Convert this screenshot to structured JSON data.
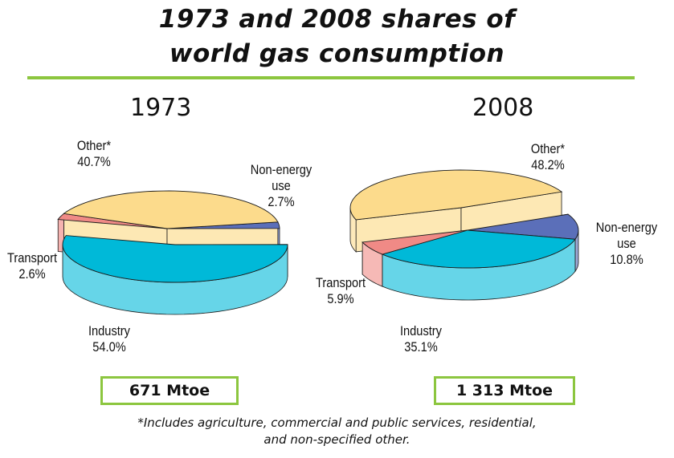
{
  "title_line1": "1973 and 2008 shares of",
  "title_line2": "world gas consumption",
  "footnote_line1": "*Includes agriculture, commercial and public services, residential,",
  "footnote_line2": "and non-specified other.",
  "colors": {
    "Industry": "#00b9d8",
    "Non-energy use": "#5b6fb9",
    "Other*": "#fcdb8c",
    "Transport": "#f08a86",
    "title_rule": "#8cc63f"
  },
  "chart_data": [
    {
      "type": "pie",
      "title": "1973",
      "total_label": "671 Mtoe",
      "slices": [
        {
          "name": "Industry",
          "value": 54.0,
          "label_name": [
            "Industry"
          ],
          "label_value": "54.0%"
        },
        {
          "name": "Non-energy use",
          "value": 2.7,
          "label_name": [
            "Non-energy",
            "use"
          ],
          "label_value": "2.7%"
        },
        {
          "name": "Other*",
          "value": 40.7,
          "label_name": [
            "Other*"
          ],
          "label_value": "40.7%"
        },
        {
          "name": "Transport",
          "value": 2.6,
          "label_name": [
            "Transport"
          ],
          "label_value": "2.6%"
        }
      ]
    },
    {
      "type": "pie",
      "title": "2008",
      "total_label": "1 313 Mtoe",
      "slices": [
        {
          "name": "Industry",
          "value": 35.1,
          "label_name": [
            "Industry"
          ],
          "label_value": "35.1%"
        },
        {
          "name": "Non-energy use",
          "value": 10.8,
          "label_name": [
            "Non-energy",
            "use"
          ],
          "label_value": "10.8%"
        },
        {
          "name": "Other*",
          "value": 48.2,
          "label_name": [
            "Other*"
          ],
          "label_value": "48.2%"
        },
        {
          "name": "Transport",
          "value": 5.9,
          "label_name": [
            "Transport"
          ],
          "label_value": "5.9%"
        }
      ]
    }
  ]
}
